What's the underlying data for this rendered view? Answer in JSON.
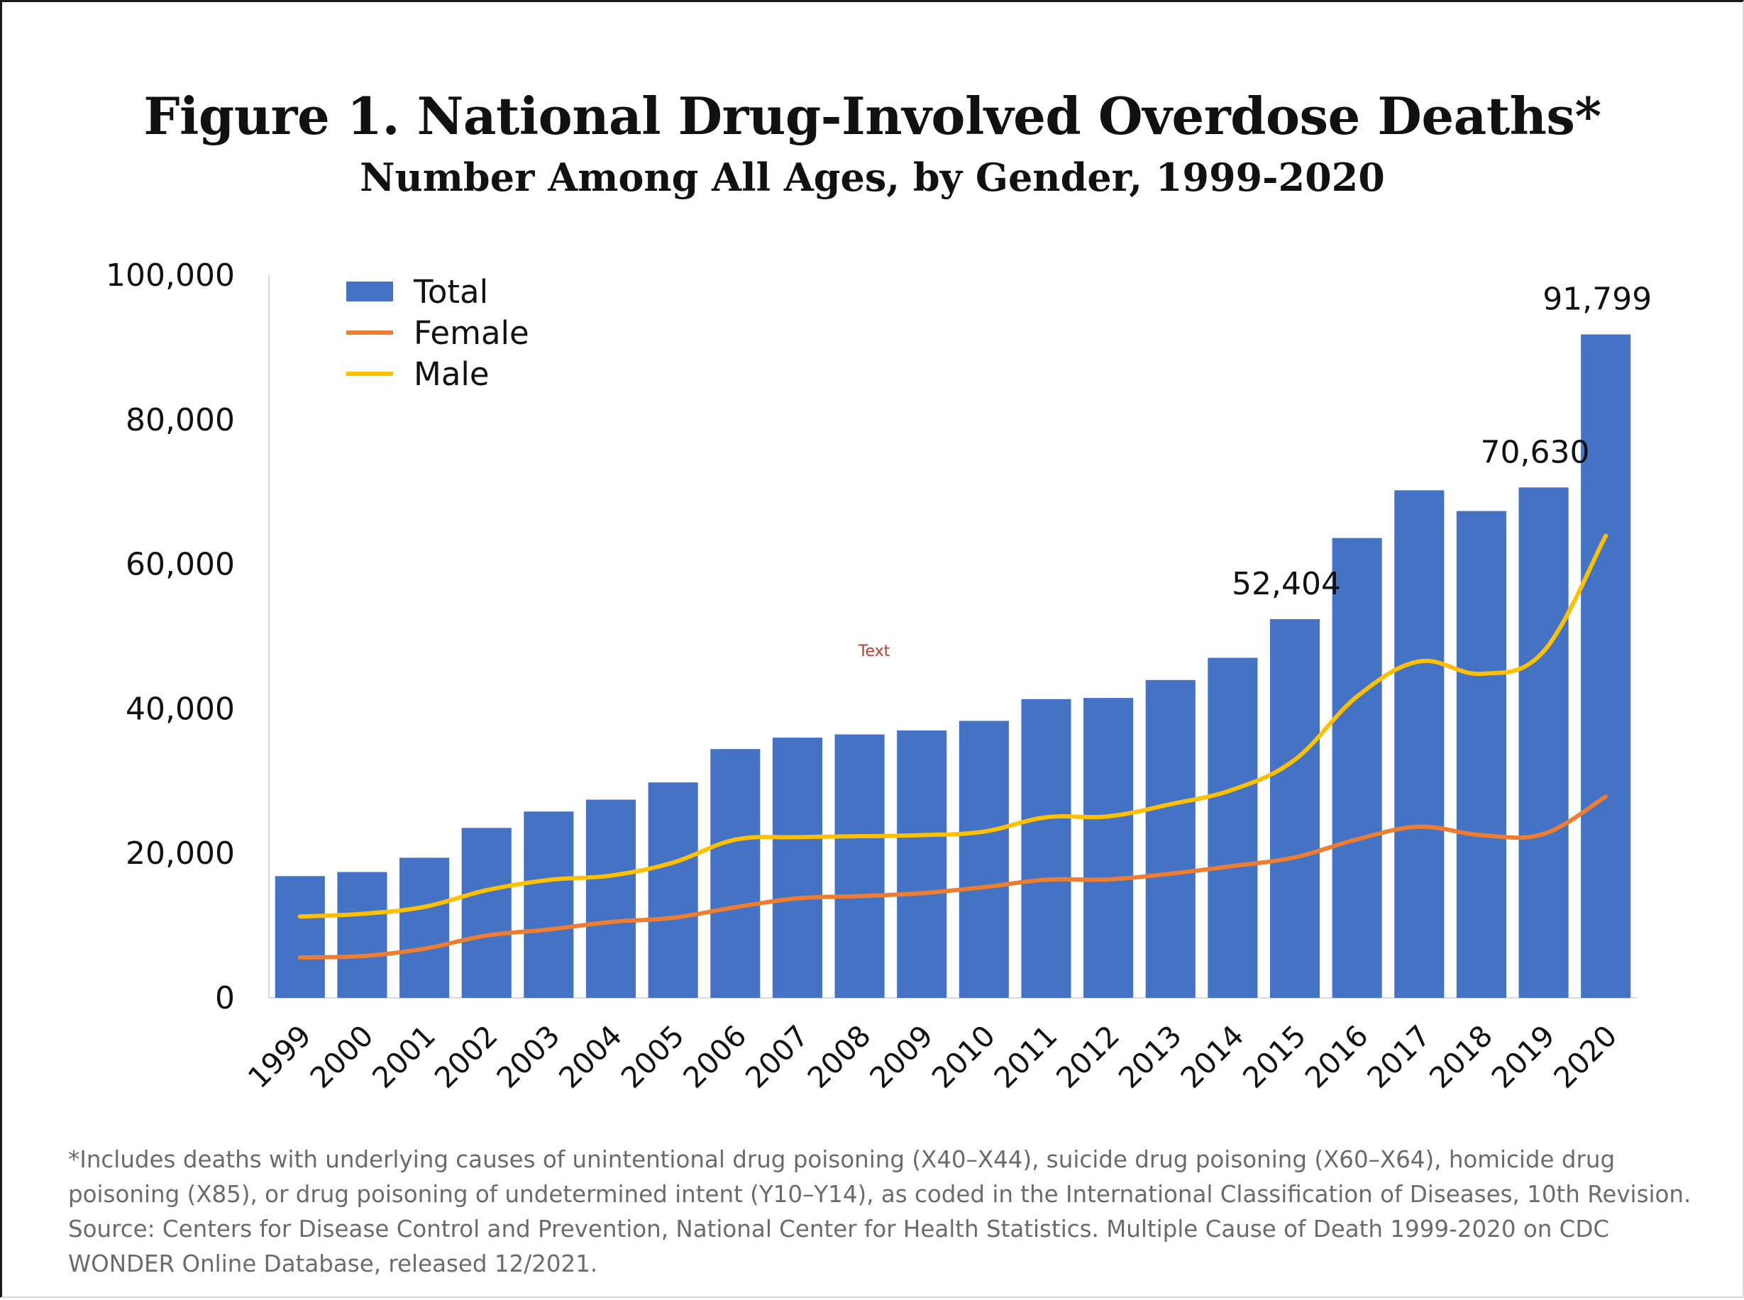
{
  "chart_data": {
    "type": "bar",
    "title": "Figure 1. National Drug-Involved Overdose Deaths*",
    "subtitle": "Number Among All Ages, by Gender, 1999-2020",
    "categories": [
      "1999",
      "2000",
      "2001",
      "2002",
      "2003",
      "2004",
      "2005",
      "2006",
      "2007",
      "2008",
      "2009",
      "2010",
      "2011",
      "2012",
      "2013",
      "2014",
      "2015",
      "2016",
      "2017",
      "2018",
      "2019",
      "2020"
    ],
    "series": [
      {
        "name": "Total",
        "kind": "bar",
        "color": "#4472C4",
        "values": [
          16849,
          17415,
          19394,
          23518,
          25785,
          27424,
          29813,
          34425,
          36010,
          36450,
          37004,
          38329,
          41340,
          41502,
          43982,
          47055,
          52404,
          63632,
          70237,
          67367,
          70630,
          91799
        ]
      },
      {
        "name": "Female",
        "kind": "line",
        "color": "#ED7D31",
        "values": [
          5591,
          5784,
          6805,
          8622,
          9466,
          10501,
          11089,
          12535,
          13775,
          14081,
          14487,
          15323,
          16351,
          16390,
          17183,
          18243,
          19447,
          21938,
          23685,
          22520,
          22683,
          27854
        ]
      },
      {
        "name": "Male",
        "kind": "line",
        "color": "#FFC000",
        "values": [
          11258,
          11631,
          12589,
          14896,
          16319,
          16923,
          18724,
          21890,
          22235,
          22369,
          22517,
          23006,
          24989,
          25112,
          26799,
          28812,
          32957,
          41694,
          46552,
          44847,
          47947,
          63945
        ]
      }
    ],
    "data_labels": [
      {
        "category": "2015",
        "text": "52,404"
      },
      {
        "category": "2019",
        "text": "70,630"
      },
      {
        "category": "2020",
        "text": "91,799"
      }
    ],
    "yticks": [
      "0",
      "20,000",
      "40,000",
      "60,000",
      "80,000",
      "100,000"
    ],
    "ylim": [
      0,
      100000
    ],
    "xlabel": "",
    "ylabel": "",
    "grid": false,
    "legend_position": "top-left",
    "stray_annotation": "Text"
  },
  "footnote": [
    "*Includes deaths with underlying causes of unintentional drug poisoning (X40–X44), suicide drug poisoning (X60–X64), homicide drug",
    "poisoning (X85), or drug poisoning of undetermined intent (Y10–Y14), as coded in the International Classification of Diseases, 10th Revision.",
    "Source: Centers for Disease Control and Prevention, National Center for Health Statistics. Multiple Cause of Death 1999-2020 on CDC",
    "WONDER Online Database, released 12/2021."
  ]
}
